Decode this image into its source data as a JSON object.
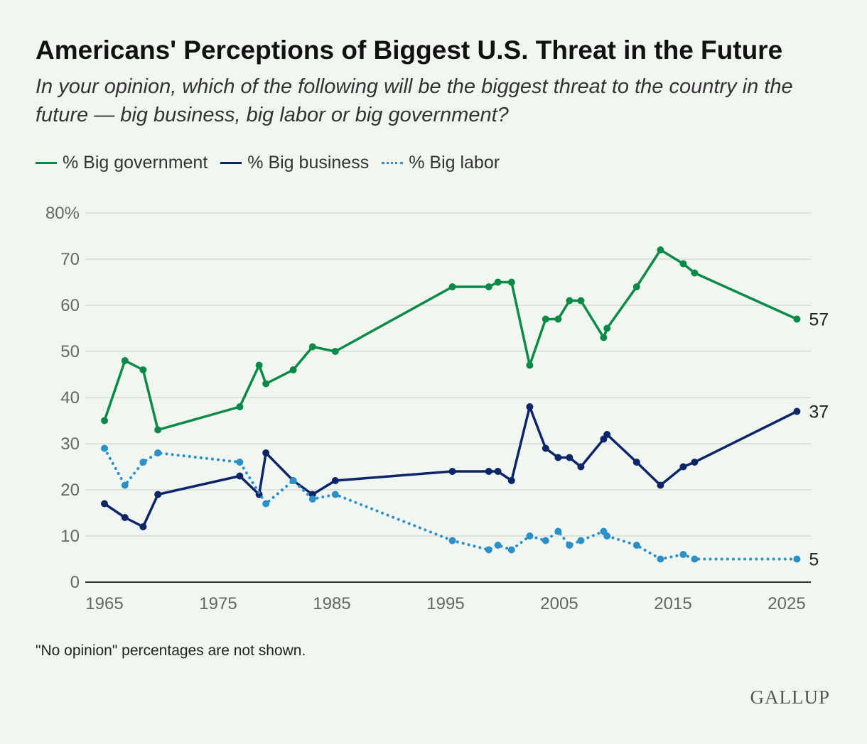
{
  "chart_data": {
    "type": "line",
    "title": "Americans' Perceptions of Biggest U.S. Threat in the Future",
    "subtitle": "In your opinion, which of the following will be the biggest threat to the country in the future — big business, big labor or big government?",
    "xlabel": "",
    "ylabel": "",
    "xlim": [
      1965,
      2025
    ],
    "ylim": [
      0,
      80
    ],
    "x_ticks": [
      "1965",
      "1975",
      "1985",
      "1995",
      "2005",
      "2015",
      "2025"
    ],
    "y_ticks": [
      "0",
      "10",
      "20",
      "30",
      "40",
      "50",
      "60",
      "70",
      "80%"
    ],
    "grid": true,
    "legend_position": "top-left",
    "note": "\"No opinion\" percentages are not shown.",
    "source_logo": "GALLUP",
    "series": [
      {
        "name": "% Big government",
        "color": "#0b8a47",
        "style": "solid",
        "end_label": "57",
        "x": [
          1965,
          1966.8,
          1968.4,
          1969.7,
          1976.9,
          1978.6,
          1979.2,
          1981.6,
          1983.3,
          1985.3,
          1995.6,
          1998.8,
          1999.6,
          2000.8,
          2002.4,
          2003.8,
          2004.9,
          2005.9,
          2006.9,
          2008.9,
          2009.2,
          2011.8,
          2013.9,
          2015.9,
          2016.9,
          2025.9
        ],
        "values": [
          35,
          48,
          46,
          33,
          38,
          47,
          43,
          46,
          51,
          50,
          64,
          64,
          65,
          65,
          47,
          57,
          57,
          61,
          61,
          53,
          55,
          64,
          72,
          69,
          67,
          57
        ]
      },
      {
        "name": "% Big business",
        "color": "#0c2567",
        "style": "solid",
        "end_label": "37",
        "x": [
          1965,
          1966.8,
          1968.4,
          1969.7,
          1976.9,
          1978.6,
          1979.2,
          1981.6,
          1983.3,
          1985.3,
          1995.6,
          1998.8,
          1999.6,
          2000.8,
          2002.4,
          2003.8,
          2004.9,
          2005.9,
          2006.9,
          2008.9,
          2009.2,
          2011.8,
          2013.9,
          2015.9,
          2016.9,
          2025.9
        ],
        "values": [
          17,
          14,
          12,
          19,
          23,
          19,
          28,
          22,
          19,
          22,
          24,
          24,
          24,
          22,
          38,
          29,
          27,
          27,
          25,
          31,
          32,
          26,
          21,
          25,
          26,
          37
        ]
      },
      {
        "name": "% Big labor",
        "color": "#2b8fc8",
        "style": "dotted",
        "end_label": "5",
        "x": [
          1965,
          1966.8,
          1968.4,
          1969.7,
          1976.9,
          1979.2,
          1981.6,
          1983.3,
          1985.3,
          1995.6,
          1998.8,
          1999.6,
          2000.8,
          2002.4,
          2003.8,
          2004.9,
          2005.9,
          2006.9,
          2008.9,
          2009.2,
          2011.8,
          2013.9,
          2015.9,
          2016.9,
          2025.9
        ],
        "values": [
          29,
          21,
          26,
          28,
          26,
          17,
          22,
          18,
          19,
          9,
          7,
          8,
          7,
          10,
          9,
          11,
          8,
          9,
          11,
          10,
          8,
          5,
          6,
          5,
          5
        ]
      }
    ]
  }
}
